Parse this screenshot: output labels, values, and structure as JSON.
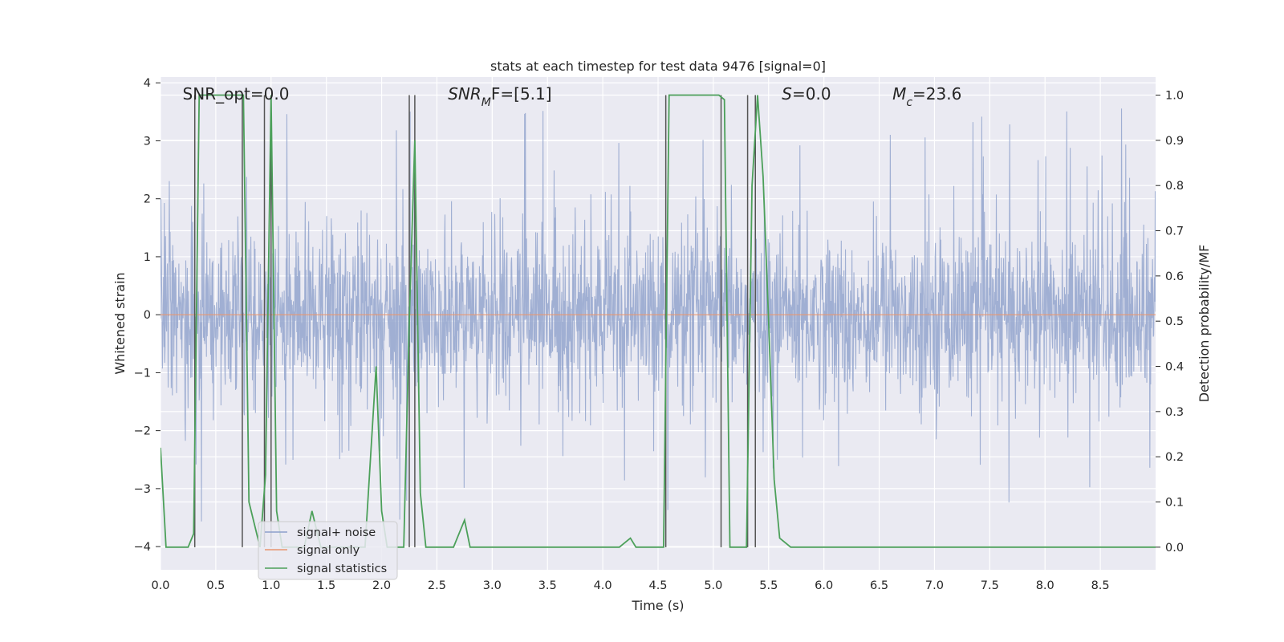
{
  "chart_data": {
    "type": "line",
    "title": "stats at each timestep for test data 9476 [signal=0]",
    "xlabel": "Time (s)",
    "ylabel_left": "Whitened strain",
    "ylabel_right": "Detection probability/MF",
    "xlim": [
      0,
      9.0
    ],
    "ylim_left": [
      -4.4,
      4.1
    ],
    "ylim_right": [
      -0.05,
      1.04
    ],
    "x_ticks": [
      "0.0",
      "0.5",
      "1.0",
      "1.5",
      "2.0",
      "2.5",
      "3.0",
      "3.5",
      "4.0",
      "4.5",
      "5.0",
      "5.5",
      "6.0",
      "6.5",
      "7.0",
      "7.5",
      "8.0",
      "8.5"
    ],
    "y_ticks_left": [
      "4",
      "3",
      "2",
      "1",
      "0",
      "−1",
      "−2",
      "−3",
      "−4"
    ],
    "y_ticks_right": [
      "1.0",
      "0.9",
      "0.8",
      "0.7",
      "0.6",
      "0.5",
      "0.4",
      "0.3",
      "0.2",
      "0.1",
      "0.0"
    ],
    "grid": true,
    "legend_position": "lower-left",
    "annotations": [
      {
        "base": "SNR_opt=0.0",
        "sub": "",
        "rest": "",
        "italic": false,
        "x": 0.2
      },
      {
        "base": "SNR",
        "sub": "M",
        "rest": "F=[5.1]",
        "italic": true,
        "x": 2.6
      },
      {
        "base": "S",
        "sub": "",
        "rest": "=0.0",
        "italic": true,
        "x": 5.62
      },
      {
        "base": "M",
        "sub": "c",
        "rest": "=23.6",
        "italic": true,
        "x": 6.62
      }
    ],
    "series": [
      {
        "name": "signal+ noise",
        "color": "#8da0cb",
        "axis": "left",
        "typical_amplitude": 1.7,
        "peak_amplitude": 3.6,
        "sample_rate_hz": 2048
      },
      {
        "name": "signal only",
        "color": "#e8956f",
        "axis": "left",
        "x": [
          0,
          9.0
        ],
        "y": [
          0,
          0
        ]
      },
      {
        "name": "signal statistics",
        "color": "#4ca05a",
        "axis": "right",
        "x": [
          0.0,
          0.05,
          0.1,
          0.25,
          0.3,
          0.35,
          0.4,
          0.55,
          0.7,
          0.75,
          0.8,
          0.9,
          0.95,
          1.0,
          1.05,
          1.1,
          1.2,
          1.3,
          1.37,
          1.45,
          1.6,
          1.75,
          1.85,
          1.9,
          1.95,
          2.0,
          2.05,
          2.1,
          2.15,
          2.2,
          2.25,
          2.3,
          2.35,
          2.4,
          2.45,
          2.5,
          2.6,
          2.65,
          2.7,
          2.75,
          2.8,
          2.9,
          3.5,
          4.0,
          4.15,
          4.2,
          4.25,
          4.3,
          4.5,
          4.55,
          4.6,
          4.65,
          5.0,
          5.05,
          5.1,
          5.15,
          5.3,
          5.35,
          5.4,
          5.45,
          5.5,
          5.55,
          5.6,
          5.7,
          6.0,
          7.0,
          8.0,
          9.0
        ],
        "y": [
          0.22,
          0.0,
          0.0,
          0.0,
          0.03,
          1.0,
          1.0,
          1.0,
          1.0,
          1.0,
          0.1,
          0.0,
          0.16,
          1.0,
          0.08,
          0.0,
          0.0,
          0.0,
          0.08,
          0.0,
          0.0,
          0.0,
          0.0,
          0.2,
          0.4,
          0.08,
          0.0,
          0.0,
          0.0,
          0.0,
          0.5,
          0.9,
          0.12,
          0.0,
          0.0,
          0.0,
          0.0,
          0.0,
          0.03,
          0.06,
          0.0,
          0.0,
          0.0,
          0.0,
          0.0,
          0.01,
          0.02,
          0.0,
          0.0,
          0.0,
          1.0,
          1.0,
          1.0,
          1.0,
          0.99,
          0.0,
          0.0,
          0.8,
          1.0,
          0.82,
          0.5,
          0.15,
          0.02,
          0.0,
          0.0,
          0.0,
          0.0,
          0.0
        ]
      },
      {
        "name": "",
        "color": "#555555",
        "axis": "right",
        "x_markers": [
          0.31,
          0.74,
          0.94,
          1.0,
          2.25,
          2.3,
          4.57,
          5.07,
          5.31,
          5.38
        ]
      }
    ]
  }
}
